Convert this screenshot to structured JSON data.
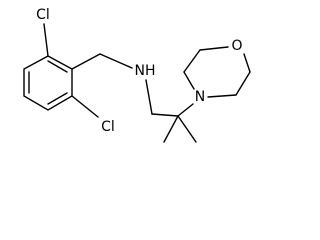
{
  "atoms": {
    "cl_top": "Cl",
    "cl_bottom": "Cl",
    "amine": "NH",
    "morpholine_n": "N",
    "morpholine_o": "O"
  }
}
